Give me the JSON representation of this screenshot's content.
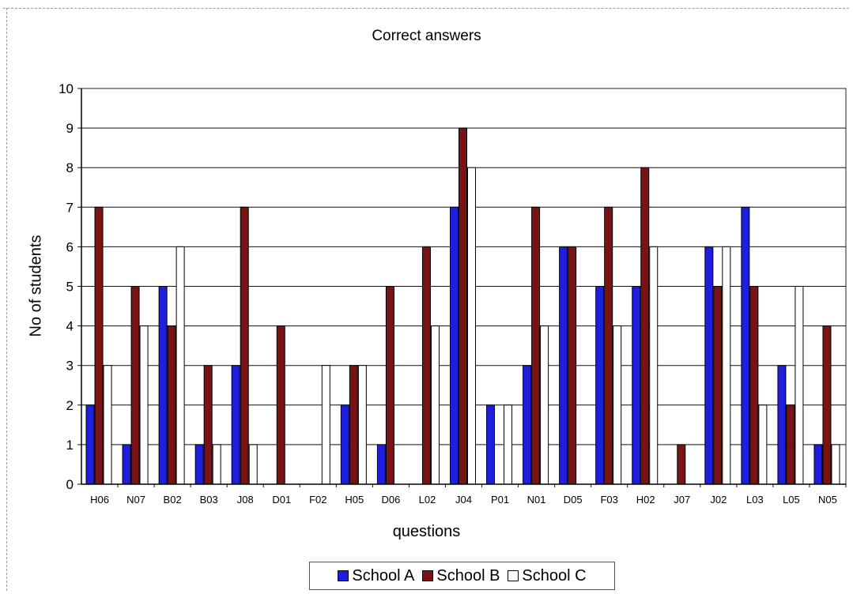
{
  "chart_data": {
    "type": "bar",
    "title": "Correct answers",
    "xlabel": "questions",
    "ylabel": "No of students",
    "ylim": [
      0,
      10
    ],
    "yticks": [
      0,
      1,
      2,
      3,
      4,
      5,
      6,
      7,
      8,
      9,
      10
    ],
    "grid": true,
    "legend_position": "bottom",
    "categories": [
      "H06",
      "N07",
      "B02",
      "B03",
      "J08",
      "D01",
      "F02",
      "H05",
      "D06",
      "L02",
      "J04",
      "P01",
      "N01",
      "D05",
      "F03",
      "H02",
      "J07",
      "J02",
      "L03",
      "L05",
      "N05"
    ],
    "series": [
      {
        "name": "School A",
        "color": "#1e1edc",
        "values": [
          2,
          1,
          5,
          1,
          3,
          0,
          0,
          2,
          1,
          0,
          7,
          2,
          3,
          6,
          5,
          5,
          0,
          6,
          7,
          3,
          1
        ]
      },
      {
        "name": "School B",
        "color": "#7a1414",
        "values": [
          7,
          5,
          4,
          3,
          7,
          4,
          0,
          3,
          5,
          6,
          9,
          0,
          7,
          6,
          7,
          8,
          1,
          5,
          5,
          2,
          4
        ]
      },
      {
        "name": "School C",
        "color": "#ffffff",
        "values": [
          3,
          4,
          6,
          1,
          1,
          0,
          3,
          3,
          0,
          4,
          8,
          2,
          4,
          0,
          4,
          6,
          0,
          6,
          2,
          5,
          1
        ]
      }
    ]
  }
}
